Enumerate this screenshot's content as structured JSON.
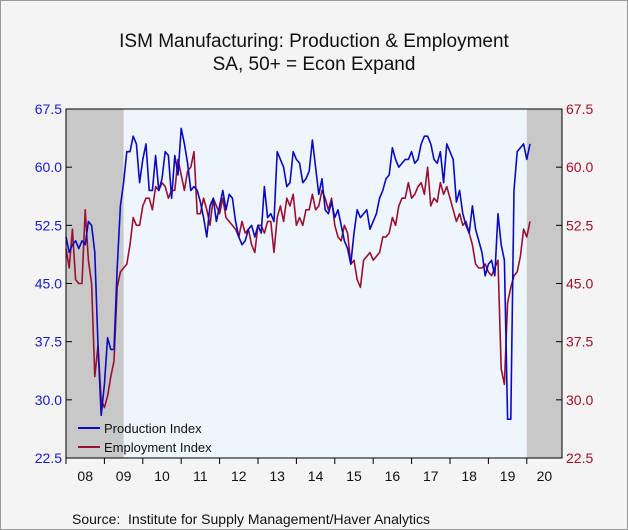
{
  "chart_data": {
    "type": "line",
    "title": "ISM Manufacturing: Production & Employment",
    "subtitle": "SA, 50+ = Econ Expand",
    "source_label": "Source:",
    "source": "Institute for Supply Management/Haver Analytics",
    "x_start": 2008.0,
    "x_end": 2020.917,
    "x_step_months": 1,
    "x_tick_labels": [
      "08",
      "09",
      "10",
      "11",
      "12",
      "13",
      "14",
      "15",
      "16",
      "17",
      "18",
      "19",
      "20"
    ],
    "y_ticks_left": [
      "67.5",
      "60.0",
      "52.5",
      "45.0",
      "37.5",
      "30.0",
      "22.5"
    ],
    "y_ticks_right": [
      "67.5",
      "60.0",
      "52.5",
      "45.0",
      "37.5",
      "30.0",
      "22.5"
    ],
    "ylim": [
      22.5,
      67.5
    ],
    "recessions": [
      [
        2008.0,
        2009.5
      ],
      [
        2020.0,
        2020.917
      ]
    ],
    "colors": {
      "production": "#0a0ac0",
      "employment": "#9a1030",
      "recession": "#c8c8c8",
      "plot_bg": "#eef5fd"
    },
    "series": [
      {
        "name": "Production Index",
        "values": [
          51.0,
          49.0,
          50.0,
          50.5,
          49.5,
          50.5,
          50.0,
          53.0,
          52.5,
          49.0,
          37.0,
          28.0,
          32.0,
          38.0,
          36.5,
          36.5,
          47.0,
          55.0,
          58.0,
          62.0,
          62.0,
          64.0,
          63.0,
          58.0,
          61.0,
          63.0,
          57.0,
          57.0,
          61.5,
          57.0,
          58.5,
          62.0,
          61.5,
          56.0,
          61.5,
          59.0,
          65.0,
          63.0,
          60.5,
          57.0,
          57.5,
          57.0,
          55.5,
          53.5,
          51.0,
          55.0,
          56.0,
          53.0,
          55.0,
          57.0,
          54.5,
          56.5,
          56.0,
          53.0,
          51.0,
          50.0,
          50.5,
          52.0,
          52.5,
          51.0,
          52.5,
          51.5,
          57.5,
          53.5,
          54.0,
          53.0,
          62.0,
          61.0,
          60.0,
          57.5,
          58.0,
          62.0,
          61.0,
          60.5,
          58.0,
          58.5,
          59.5,
          63.5,
          60.0,
          56.5,
          58.5,
          54.5,
          54.0,
          55.5,
          53.5,
          54.5,
          52.5,
          50.5,
          49.5,
          47.5,
          51.5,
          54.5,
          53.5,
          54.0,
          54.5,
          52.0,
          53.0,
          54.0,
          56.0,
          57.0,
          58.5,
          59.0,
          62.5,
          61.0,
          60.0,
          60.5,
          61.0,
          61.0,
          62.0,
          60.5,
          61.0,
          63.0,
          64.0,
          64.0,
          63.0,
          61.0,
          60.5,
          62.0,
          58.0,
          63.0,
          62.0,
          61.0,
          55.5,
          57.0,
          54.0,
          52.5,
          51.5,
          55.0,
          52.0,
          50.5,
          49.0,
          46.0,
          47.5,
          48.0,
          46.0,
          54.0,
          50.0,
          48.0,
          27.5,
          27.5,
          57.0,
          62.0,
          62.5,
          63.0,
          61.0,
          63.0
        ]
      },
      {
        "name": "Employment Index",
        "values": [
          49.5,
          47.0,
          52.0,
          45.5,
          45.0,
          45.0,
          54.5,
          48.0,
          45.0,
          33.0,
          37.0,
          30.0,
          29.0,
          30.5,
          33.0,
          35.0,
          44.5,
          46.5,
          47.0,
          47.5,
          50.0,
          53.5,
          52.5,
          52.5,
          55.0,
          56.0,
          56.0,
          54.5,
          57.5,
          57.0,
          58.0,
          57.5,
          56.0,
          57.0,
          57.0,
          61.0,
          59.0,
          57.0,
          59.5,
          60.0,
          62.0,
          54.0,
          54.0,
          56.0,
          54.5,
          52.5,
          56.0,
          55.0,
          54.0,
          56.0,
          53.5,
          53.0,
          52.5,
          52.0,
          51.0,
          53.0,
          51.5,
          52.0,
          50.0,
          49.0,
          52.5,
          52.5,
          51.5,
          53.0,
          53.0,
          49.0,
          53.5,
          55.0,
          53.0,
          56.0,
          55.0,
          56.5,
          52.5,
          53.5,
          52.5,
          54.5,
          54.5,
          56.5,
          54.5,
          55.0,
          57.0,
          56.0,
          54.5,
          56.0,
          52.5,
          51.0,
          50.5,
          52.5,
          51.5,
          47.5,
          48.0,
          45.5,
          44.5,
          48.0,
          48.5,
          49.0,
          48.0,
          48.5,
          49.0,
          51.0,
          51.0,
          51.5,
          53.5,
          52.5,
          55.0,
          56.0,
          56.0,
          58.0,
          56.0,
          56.5,
          57.5,
          58.0,
          56.5,
          60.0,
          55.0,
          56.0,
          55.5,
          58.0,
          56.5,
          57.5,
          56.0,
          54.5,
          53.0,
          54.0,
          52.5,
          53.0,
          51.5,
          50.0,
          47.5,
          47.0,
          47.0,
          47.5,
          46.5,
          46.0,
          47.0,
          48.0,
          34.0,
          32.0,
          42.5,
          44.5,
          46.0,
          46.5,
          48.5,
          52.0,
          51.0,
          53.0
        ]
      }
    ]
  }
}
